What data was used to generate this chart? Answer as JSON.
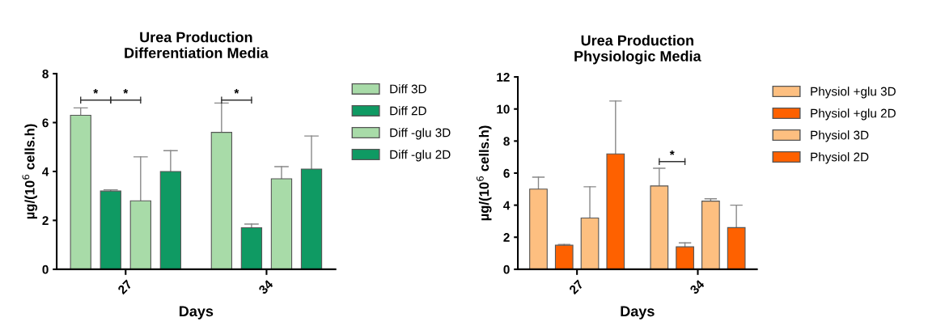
{
  "chart_data": [
    {
      "type": "bar",
      "title": "Urea Production\nDifferentiation Media",
      "xlabel": "Days",
      "ylabel": "µg/(10$^{6}$ cells.h)",
      "categories": [
        "27",
        "34"
      ],
      "ylim": [
        0,
        8
      ],
      "yticks": [
        0,
        2,
        4,
        6,
        8
      ],
      "legend": "right",
      "grid": false,
      "series": [
        {
          "name": "Diff 3D",
          "color": "#a8dba8",
          "values": [
            6.3,
            5.6
          ],
          "errors": [
            [
              6.3,
              6.6
            ],
            [
              5.6,
              6.8
            ]
          ]
        },
        {
          "name": "Diff 2D",
          "color": "#0f9a63",
          "values": [
            3.2,
            1.7
          ],
          "errors": [
            [
              3.2,
              3.25
            ],
            [
              1.7,
              1.85
            ]
          ]
        },
        {
          "name": "Diff -glu 3D",
          "color": "#a8dba8",
          "values": [
            2.8,
            3.7
          ],
          "errors": [
            [
              2.8,
              4.6
            ],
            [
              3.7,
              4.2
            ]
          ]
        },
        {
          "name": "Diff -glu 2D",
          "color": "#0f9a63",
          "values": [
            4.0,
            4.1
          ],
          "errors": [
            [
              4.0,
              4.85
            ],
            [
              4.1,
              5.45
            ]
          ]
        }
      ],
      "annotations": [
        "*",
        "*",
        "*"
      ]
    },
    {
      "type": "bar",
      "title": "Urea Production\nPhysiologic Media",
      "xlabel": "Days",
      "ylabel": "µg/(10$^{6}$ cells.h)",
      "categories": [
        "27",
        "34"
      ],
      "ylim": [
        0,
        12
      ],
      "yticks": [
        0,
        2,
        4,
        6,
        8,
        10,
        12
      ],
      "legend": "right",
      "grid": false,
      "series": [
        {
          "name": "Physiol +glu 3D",
          "color": "#fdbf80",
          "values": [
            5.0,
            5.2
          ],
          "errors": [
            [
              5.0,
              5.75
            ],
            [
              5.2,
              6.3
            ]
          ]
        },
        {
          "name": "Physiol +glu 2D",
          "color": "#fe6100",
          "values": [
            1.5,
            1.4
          ],
          "errors": [
            [
              1.5,
              1.55
            ],
            [
              1.4,
              1.65
            ]
          ]
        },
        {
          "name": "Physiol 3D",
          "color": "#fdbf80",
          "values": [
            3.2,
            4.25
          ],
          "errors": [
            [
              3.2,
              5.15
            ],
            [
              4.25,
              4.4
            ]
          ]
        },
        {
          "name": "Physiol 2D",
          "color": "#fe6100",
          "values": [
            7.2,
            2.6
          ],
          "errors": [
            [
              7.2,
              10.5
            ],
            [
              2.6,
              4.0
            ]
          ]
        }
      ],
      "annotations": [
        "*"
      ]
    }
  ]
}
